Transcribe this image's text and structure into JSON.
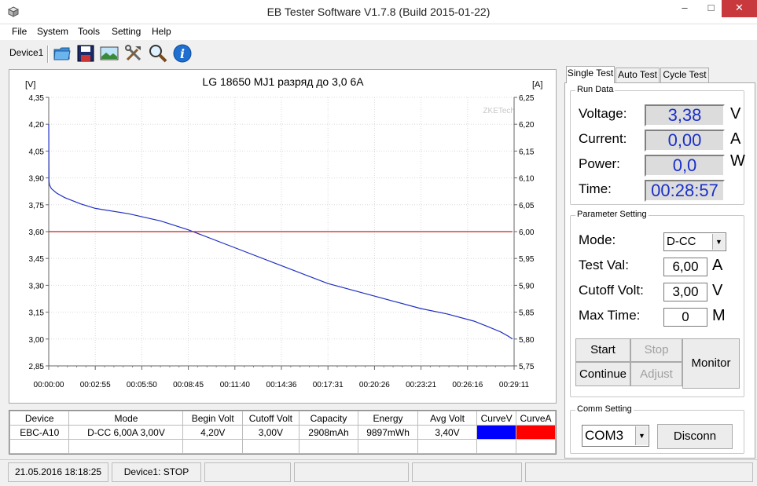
{
  "window": {
    "title": "EB Tester Software V1.7.8 (Build 2015-01-22)"
  },
  "menu": [
    "File",
    "System",
    "Tools",
    "Setting",
    "Help"
  ],
  "toolbar": {
    "device_tab": "Device1",
    "buttons": [
      "open-folder-icon",
      "save-disk-icon",
      "image-export-icon",
      "tools-icon",
      "zoom-icon",
      "info-icon"
    ]
  },
  "chart_data": {
    "type": "line",
    "title": "LG 18650 MJ1 разряд до 3,0 6А",
    "watermark": "ZKETech",
    "ylabel_left": "[V]",
    "ylabel_right": "[A]",
    "yticks_left": [
      "4,35",
      "4,20",
      "4,05",
      "3,90",
      "3,75",
      "3,60",
      "3,45",
      "3,30",
      "3,15",
      "3,00",
      "2,85"
    ],
    "yticks_right": [
      "6,25",
      "6,20",
      "6,15",
      "6,10",
      "6,05",
      "6,00",
      "5,95",
      "5,90",
      "5,85",
      "5,80",
      "5,75"
    ],
    "xticks": [
      "00:00:00",
      "00:02:55",
      "00:05:50",
      "00:08:45",
      "00:11:40",
      "00:14:36",
      "00:17:31",
      "00:20:26",
      "00:23:21",
      "00:26:16",
      "00:29:11"
    ],
    "ylim_left": [
      2.85,
      4.35
    ],
    "ylim_right": [
      5.75,
      6.25
    ],
    "xlim_seconds": [
      0,
      1751
    ],
    "grid": true,
    "series": [
      {
        "color": "#1f2fc2",
        "axis": "left",
        "x": [
          0,
          1,
          3,
          10,
          30,
          60,
          120,
          175,
          300,
          420,
          525,
          700,
          875,
          1050,
          1225,
          1300,
          1400,
          1500,
          1600,
          1651,
          1700,
          1730,
          1745
        ],
        "y": [
          4.2,
          3.88,
          3.86,
          3.84,
          3.815,
          3.79,
          3.755,
          3.73,
          3.7,
          3.66,
          3.61,
          3.51,
          3.41,
          3.31,
          3.24,
          3.21,
          3.17,
          3.14,
          3.1,
          3.07,
          3.04,
          3.015,
          3.0
        ]
      },
      {
        "color": "#cc1f1f",
        "axis": "right",
        "x": [
          0,
          1745
        ],
        "y": [
          6.0,
          6.0
        ]
      }
    ]
  },
  "results": {
    "headers": [
      "Device",
      "Mode",
      "Begin Volt",
      "Cutoff Volt",
      "Capacity",
      "Energy",
      "Avg Volt",
      "CurveV",
      "CurveA"
    ],
    "row": [
      "EBC-A10",
      "D-CC  6,00A  3,00V",
      "4,20V",
      "3,00V",
      "2908mAh",
      "9897mWh",
      "3,40V"
    ],
    "curve_v_color": "#0000ff",
    "curve_a_color": "#ff0000"
  },
  "status": {
    "datetime": "21.05.2016 18:18:25",
    "device_state": "Device1: STOP"
  },
  "tabs": [
    "Single Test",
    "Auto Test",
    "Cycle Test"
  ],
  "run_data": {
    "title": "Run Data",
    "voltage_label": "Voltage:",
    "voltage": "3,38",
    "voltage_unit": "V",
    "current_label": "Current:",
    "current": "0,00",
    "current_unit": "A",
    "power_label": "Power:",
    "power": "0,0",
    "power_unit": "W",
    "time_label": "Time:",
    "time": "00:28:57"
  },
  "params": {
    "title": "Parameter Setting",
    "mode_label": "Mode:",
    "mode": "D-CC",
    "test_val_label": "Test Val:",
    "test_val": "6,00",
    "test_val_unit": "A",
    "cutoff_label": "Cutoff Volt:",
    "cutoff": "3,00",
    "cutoff_unit": "V",
    "max_time_label": "Max Time:",
    "max_time": "0",
    "max_time_unit": "M"
  },
  "buttons": {
    "start": "Start",
    "stop": "Stop",
    "continue": "Continue",
    "adjust": "Adjust",
    "monitor": "Monitor"
  },
  "comm": {
    "title": "Comm Setting",
    "port": "COM3",
    "disconnect": "Disconn"
  }
}
